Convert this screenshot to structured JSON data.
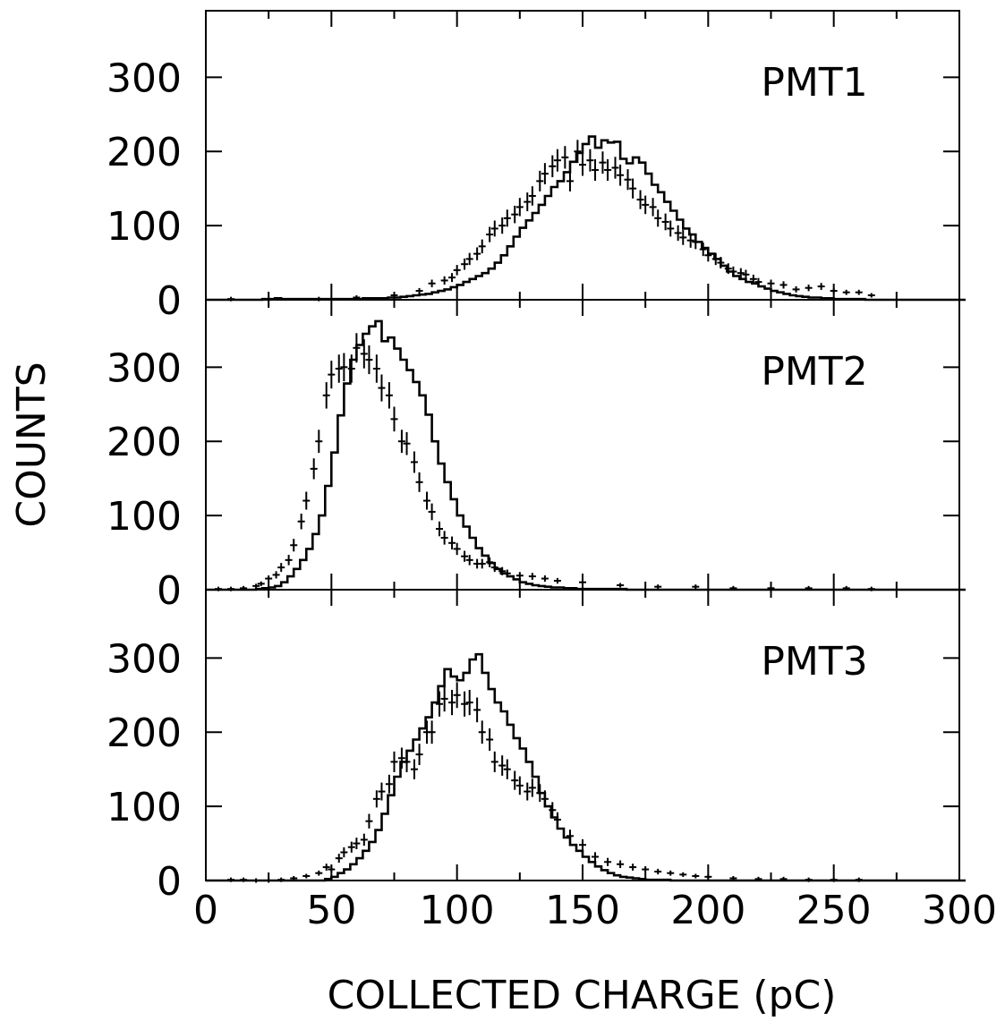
{
  "chart_data": {
    "type": "line",
    "layout": "three vertically stacked panels sharing the x axis",
    "xlabel": "COLLECTED CHARGE (pC)",
    "ylabel": "COUNTS",
    "xlim": [
      0,
      300
    ],
    "ylim": [
      0,
      390
    ],
    "x_ticks": [
      "0",
      "50",
      "100",
      "150",
      "200",
      "250",
      "300"
    ],
    "y_ticks": [
      "0",
      "100",
      "200",
      "300"
    ],
    "series_styles": {
      "histogram": "solid black step line",
      "points": "black crosses with error bars"
    },
    "panels": [
      {
        "label": "PMT1",
        "histogram": {
          "bin_width": 2.5,
          "x_start": 0,
          "values": [
            0,
            0,
            0,
            0,
            0,
            0,
            0,
            0,
            0,
            1,
            1,
            2,
            1,
            1,
            1,
            1,
            1,
            1,
            1,
            1,
            1,
            1,
            1,
            1,
            1,
            2,
            2,
            2,
            2,
            3,
            3,
            4,
            5,
            6,
            7,
            8,
            10,
            12,
            14,
            17,
            20,
            24,
            28,
            32,
            36,
            42,
            50,
            60,
            72,
            85,
            97,
            107,
            117,
            128,
            140,
            152,
            160,
            172,
            186,
            198,
            210,
            220,
            205,
            215,
            212,
            213,
            190,
            184,
            192,
            185,
            170,
            155,
            145,
            132,
            120,
            108,
            96,
            88,
            78,
            70,
            62,
            55,
            46,
            38,
            32,
            28,
            24,
            22,
            18,
            15,
            12,
            10,
            8,
            6,
            5,
            4,
            3,
            3,
            2,
            2,
            1,
            1,
            1,
            1,
            1,
            0,
            0,
            0,
            0,
            0,
            0,
            0,
            0,
            0,
            0,
            0,
            0,
            0,
            0,
            0,
            0
          ]
        },
        "points": {
          "x": [
            10,
            25,
            45,
            60,
            75,
            85,
            90,
            95,
            98,
            100,
            103,
            105,
            108,
            110,
            113,
            115,
            118,
            120,
            123,
            125,
            128,
            130,
            133,
            135,
            138,
            140,
            143,
            145,
            148,
            150,
            153,
            155,
            158,
            160,
            163,
            165,
            168,
            170,
            173,
            175,
            178,
            180,
            183,
            185,
            188,
            190,
            193,
            195,
            198,
            200,
            203,
            205,
            208,
            210,
            213,
            215,
            218,
            220,
            225,
            230,
            235,
            240,
            245,
            250,
            255,
            260,
            265
          ],
          "y": [
            1,
            1,
            1,
            3,
            6,
            12,
            22,
            26,
            30,
            40,
            48,
            55,
            62,
            72,
            88,
            96,
            100,
            110,
            115,
            125,
            132,
            140,
            160,
            170,
            180,
            188,
            192,
            160,
            200,
            182,
            188,
            175,
            185,
            175,
            178,
            168,
            162,
            150,
            135,
            128,
            125,
            110,
            105,
            96,
            90,
            84,
            80,
            78,
            68,
            60,
            55,
            50,
            42,
            38,
            36,
            34,
            28,
            24,
            22,
            20,
            14,
            16,
            18,
            12,
            10,
            10,
            6
          ]
        }
      },
      {
        "label": "PMT2",
        "histogram": {
          "bin_width": 2.5,
          "x_start": 0,
          "values": [
            0,
            0,
            0,
            0,
            0,
            0,
            0,
            0,
            1,
            2,
            3,
            5,
            10,
            18,
            28,
            40,
            55,
            75,
            100,
            140,
            185,
            235,
            278,
            310,
            330,
            345,
            355,
            362,
            335,
            340,
            325,
            310,
            296,
            280,
            262,
            236,
            200,
            170,
            145,
            122,
            100,
            85,
            70,
            56,
            46,
            36,
            28,
            22,
            18,
            14,
            10,
            8,
            6,
            5,
            4,
            3,
            3,
            2,
            2,
            1,
            1,
            1,
            1,
            1,
            1,
            1,
            1,
            0,
            0,
            0,
            0,
            0,
            0,
            0,
            0,
            0,
            0,
            0,
            0,
            0,
            0,
            0,
            0,
            0,
            0,
            0,
            0,
            0,
            0,
            0,
            0,
            0,
            0,
            0,
            0,
            0,
            0,
            0,
            0,
            0,
            0,
            0,
            0,
            0,
            0,
            0,
            0,
            0,
            0,
            0,
            0,
            0,
            0,
            0,
            0,
            0,
            0,
            0,
            0,
            0,
            0
          ]
        },
        "points": {
          "x": [
            5,
            10,
            15,
            20,
            22,
            25,
            28,
            30,
            33,
            35,
            38,
            40,
            43,
            45,
            48,
            50,
            53,
            55,
            58,
            60,
            63,
            65,
            68,
            70,
            73,
            75,
            78,
            80,
            83,
            85,
            88,
            90,
            93,
            95,
            98,
            100,
            103,
            105,
            108,
            110,
            113,
            115,
            118,
            120,
            125,
            130,
            135,
            140,
            150,
            165,
            180,
            195,
            210,
            225,
            240,
            255,
            265
          ],
          "y": [
            1,
            1,
            2,
            5,
            8,
            15,
            20,
            30,
            40,
            60,
            92,
            120,
            163,
            200,
            262,
            290,
            298,
            300,
            298,
            326,
            318,
            310,
            298,
            272,
            262,
            230,
            200,
            197,
            172,
            145,
            120,
            105,
            82,
            70,
            63,
            55,
            45,
            40,
            35,
            35,
            37,
            30,
            25,
            22,
            19,
            18,
            15,
            12,
            10,
            6,
            4,
            4,
            2,
            2,
            2,
            2,
            1
          ]
        }
      },
      {
        "label": "PMT3",
        "histogram": {
          "bin_width": 2.5,
          "x_start": 0,
          "values": [
            0,
            0,
            0,
            0,
            0,
            0,
            0,
            0,
            0,
            0,
            0,
            0,
            0,
            0,
            0,
            0,
            0,
            0,
            0,
            2,
            5,
            10,
            15,
            22,
            30,
            40,
            52,
            68,
            90,
            115,
            140,
            160,
            175,
            190,
            205,
            220,
            240,
            262,
            285,
            275,
            270,
            280,
            298,
            305,
            280,
            258,
            240,
            228,
            210,
            192,
            178,
            160,
            140,
            118,
            100,
            85,
            70,
            58,
            48,
            40,
            32,
            25,
            19,
            14,
            10,
            7,
            5,
            4,
            3,
            2,
            1,
            1,
            1,
            1,
            0,
            0,
            0,
            0,
            0,
            0,
            0,
            0,
            0,
            0,
            0,
            0,
            0,
            0,
            0,
            0,
            0,
            0,
            0,
            0,
            0,
            0,
            0,
            0,
            0,
            0,
            0,
            0,
            0,
            0,
            0,
            0,
            0,
            0,
            0,
            0,
            0,
            0,
            0,
            0,
            0,
            0,
            0,
            0,
            0,
            0,
            0
          ]
        },
        "points": {
          "x": [
            10,
            15,
            20,
            25,
            30,
            35,
            40,
            45,
            48,
            50,
            53,
            55,
            58,
            60,
            63,
            65,
            68,
            70,
            73,
            75,
            78,
            80,
            83,
            85,
            88,
            90,
            93,
            95,
            98,
            100,
            103,
            105,
            108,
            110,
            113,
            115,
            118,
            120,
            123,
            125,
            128,
            130,
            133,
            135,
            138,
            140,
            145,
            150,
            155,
            160,
            165,
            170,
            175,
            180,
            185,
            190,
            195,
            200,
            210,
            220,
            230,
            240,
            250,
            260
          ],
          "y": [
            1,
            1,
            0,
            0,
            1,
            3,
            6,
            10,
            18,
            15,
            30,
            38,
            45,
            50,
            55,
            80,
            110,
            120,
            130,
            160,
            165,
            160,
            150,
            170,
            200,
            200,
            238,
            245,
            240,
            250,
            238,
            240,
            230,
            200,
            190,
            160,
            155,
            150,
            135,
            128,
            120,
            125,
            118,
            110,
            95,
            82,
            60,
            48,
            32,
            25,
            22,
            18,
            15,
            12,
            10,
            8,
            6,
            5,
            3,
            2,
            2,
            1,
            1,
            1
          ]
        }
      }
    ]
  }
}
